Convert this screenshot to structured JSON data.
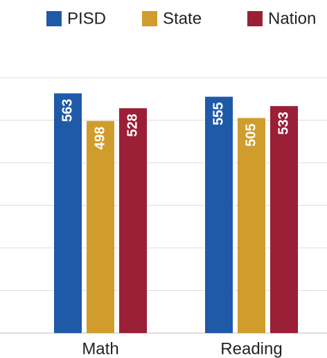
{
  "chart_data": {
    "type": "bar",
    "categories": [
      "Math",
      "Reading"
    ],
    "series": [
      {
        "name": "PISD",
        "color": "#1f5aa8",
        "values": [
          563,
          555
        ]
      },
      {
        "name": "State",
        "color": "#d09c2c",
        "values": [
          498,
          505
        ]
      },
      {
        "name": "Nation",
        "color": "#9b1f36",
        "values": [
          528,
          533
        ]
      }
    ],
    "ylim": [
      0,
      600
    ],
    "yticks": [
      0,
      100,
      200,
      300,
      400,
      500,
      600
    ],
    "grid": true,
    "legend": "top"
  }
}
